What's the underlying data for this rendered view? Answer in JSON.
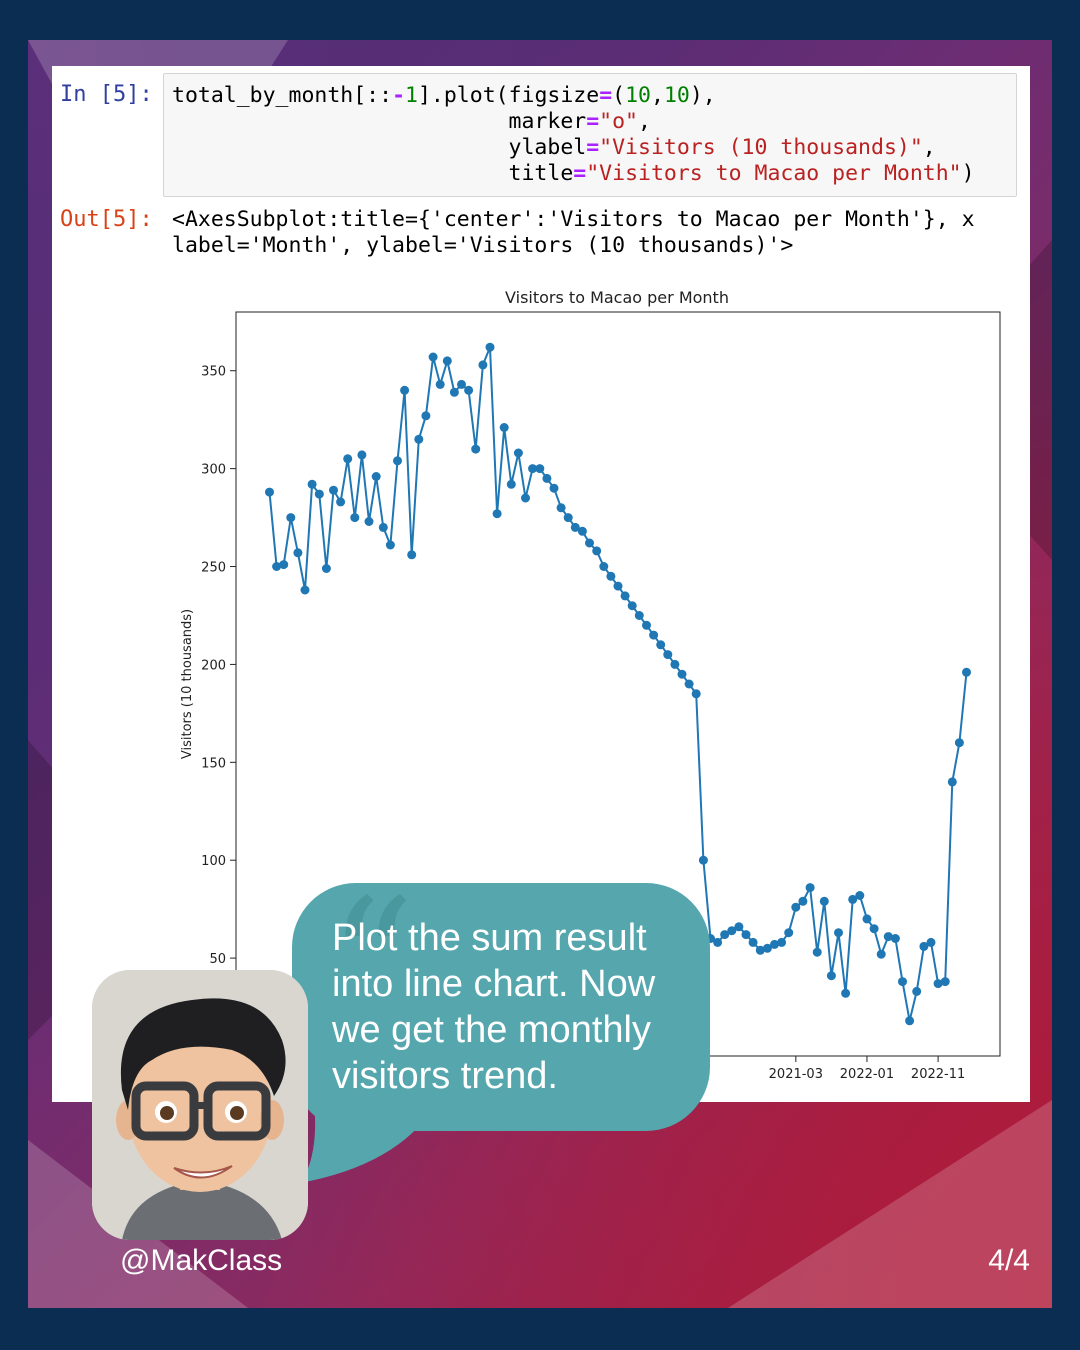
{
  "cell": {
    "in_prompt": "In [5]:",
    "out_prompt": "Out[5]:",
    "code_line1_a": "total_by_month[::",
    "code_line1_op": "-",
    "code_line1_n": "1",
    "code_line1_b": "].plot(figsize",
    "code_eq": "=",
    "code_line1_c": "(",
    "code_num_10": "10",
    "code_line1_d": ",",
    "code_line1_e": "),",
    "code_line2_a": "marker",
    "code_line2_str": "\"o\"",
    "code_line2_b": ",",
    "code_line3_a": "ylabel",
    "code_line3_str": "\"Visitors (10 thousands)\"",
    "code_line3_b": ",",
    "code_line4_a": "title",
    "code_line4_str": "\"Visitors to Macao per Month\"",
    "code_line4_b": ")",
    "output_text": "<AxesSubplot:title={'center':'Visitors to Macao per Month'}, x\nlabel='Month', ylabel='Visitors (10 thousands)'>"
  },
  "chart_data": {
    "type": "line",
    "title": "Visitors to Macao per Month",
    "ylabel": "Visitors (10 thousands)",
    "xlabel": "",
    "ylim": [
      0,
      380
    ],
    "y_ticks": [
      50,
      100,
      150,
      200,
      250,
      300,
      350
    ],
    "x_ticks": [
      "2021-03",
      "2022-01",
      "2022-11"
    ],
    "x_tick_months": [
      "2021-03",
      "2022-01",
      "2022-11"
    ],
    "marker": "o",
    "color": "#1f77b4",
    "grid": false,
    "series": [
      {
        "x": [
          "2015-01",
          "2015-02",
          "2015-03",
          "2015-04",
          "2015-05",
          "2015-06",
          "2015-07",
          "2015-08",
          "2015-09",
          "2015-10",
          "2015-11",
          "2015-12",
          "2016-01",
          "2016-02",
          "2016-03",
          "2016-04",
          "2016-05",
          "2016-06",
          "2016-07",
          "2016-08",
          "2016-09",
          "2016-10",
          "2016-11",
          "2016-12",
          "2017-01",
          "2017-02",
          "2017-03",
          "2017-04",
          "2017-05",
          "2017-06",
          "2017-07",
          "2017-08",
          "2017-09",
          "2017-10",
          "2017-11",
          "2017-12",
          "2018-01",
          "2018-02",
          "2018-03",
          "2018-04",
          "2018-05",
          "2018-06",
          "2018-07",
          "2018-08",
          "2018-09",
          "2018-10",
          "2018-11",
          "2018-12",
          "2019-01",
          "2019-02",
          "2019-03",
          "2019-04",
          "2019-05",
          "2019-06",
          "2019-07",
          "2019-08",
          "2019-09",
          "2019-10",
          "2019-11",
          "2019-12",
          "2020-01",
          "2020-02",
          "2020-03",
          "2020-04",
          "2020-05",
          "2020-06",
          "2020-07",
          "2020-08",
          "2020-09",
          "2020-10",
          "2020-11",
          "2020-12",
          "2021-01",
          "2021-02",
          "2021-03",
          "2021-04",
          "2021-05",
          "2021-06",
          "2021-07",
          "2021-08",
          "2021-09",
          "2021-10",
          "2021-11",
          "2021-12",
          "2022-01",
          "2022-02",
          "2022-03",
          "2022-04",
          "2022-05",
          "2022-06",
          "2022-07",
          "2022-08",
          "2022-09",
          "2022-10",
          "2022-11",
          "2022-12",
          "2023-01",
          "2023-02",
          "2023-03"
        ],
        "values": [
          288,
          250,
          251,
          275,
          257,
          238,
          292,
          287,
          249,
          289,
          283,
          305,
          275,
          307,
          273,
          296,
          270,
          261,
          304,
          340,
          256,
          315,
          327,
          357,
          343,
          355,
          339,
          343,
          340,
          310,
          353,
          362,
          277,
          321,
          292,
          308,
          285,
          300,
          300,
          295,
          290,
          280,
          275,
          270,
          268,
          262,
          258,
          250,
          245,
          240,
          235,
          230,
          225,
          220,
          215,
          210,
          205,
          200,
          195,
          190,
          185,
          100,
          60,
          58,
          62,
          64,
          66,
          62,
          58,
          54,
          55,
          57,
          58,
          63,
          76,
          79,
          86,
          53,
          79,
          41,
          63,
          32,
          80,
          82,
          70,
          65,
          52,
          61,
          60,
          38,
          18,
          33,
          56,
          58,
          37,
          38,
          140,
          160,
          196
        ]
      }
    ]
  },
  "bubble": {
    "quote_mark": "“",
    "text": "Plot the sum result into line chart. Now we get the monthly visitors trend."
  },
  "footer": {
    "handle": "@MakClass",
    "page": "4/4"
  }
}
